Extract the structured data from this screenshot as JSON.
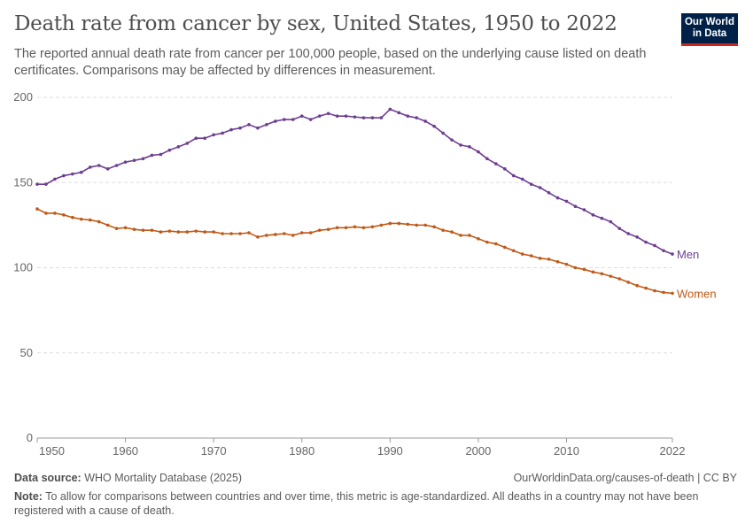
{
  "header": {
    "title": "Death rate from cancer by sex, United States, 1950 to 2022",
    "subtitle": "The reported annual death rate from cancer per 100,000 people, based on the underlying cause listed on death certificates. Comparisons may be affected by differences in measurement.",
    "logo_text": "Our World in Data"
  },
  "footer": {
    "source_label": "Data source:",
    "source": "WHO Mortality Database (2025)",
    "url": "OurWorldinData.org/causes-of-death | CC BY",
    "note_label": "Note:",
    "note": "To allow for comparisons between countries and over time, this metric is age-standardized. All deaths in a country may not have been registered with a cause of death."
  },
  "chart_data": {
    "type": "line",
    "title": "Death rate from cancer by sex, United States, 1950 to 2022",
    "xlim": [
      1950,
      2022
    ],
    "ylim": [
      0,
      200
    ],
    "x_ticks": [
      "1950",
      "1960",
      "1970",
      "1980",
      "1990",
      "2000",
      "2010",
      "2022"
    ],
    "y_ticks": [
      "0",
      "50",
      "100",
      "150",
      "200"
    ],
    "grid": "horizontal dashed",
    "legend": "end-of-line labels",
    "x": [
      1950,
      1951,
      1952,
      1953,
      1954,
      1955,
      1956,
      1957,
      1958,
      1959,
      1960,
      1961,
      1962,
      1963,
      1964,
      1965,
      1966,
      1967,
      1968,
      1969,
      1970,
      1971,
      1972,
      1973,
      1974,
      1975,
      1976,
      1977,
      1978,
      1979,
      1980,
      1981,
      1982,
      1983,
      1984,
      1985,
      1986,
      1987,
      1988,
      1989,
      1990,
      1991,
      1992,
      1993,
      1994,
      1995,
      1996,
      1997,
      1998,
      1999,
      2000,
      2001,
      2002,
      2003,
      2004,
      2005,
      2006,
      2007,
      2008,
      2009,
      2010,
      2011,
      2012,
      2013,
      2014,
      2015,
      2016,
      2017,
      2018,
      2019,
      2020,
      2021,
      2022
    ],
    "series": [
      {
        "name": "Men",
        "color": "#6d3e91",
        "values": [
          149,
          149,
          152,
          154,
          155,
          156,
          159,
          160,
          158,
          160,
          162,
          163,
          164,
          166,
          166.5,
          169,
          171,
          173,
          176,
          176,
          178,
          179,
          181,
          182,
          184,
          182,
          184,
          186,
          187,
          187,
          189,
          187,
          189,
          190.5,
          189,
          189,
          188.5,
          188,
          188,
          188,
          193,
          191,
          189,
          188,
          186,
          183,
          179,
          175,
          172,
          171,
          168,
          164,
          161,
          158,
          154,
          152,
          149,
          147,
          144,
          141,
          139,
          136,
          134,
          131,
          129,
          127,
          123,
          120,
          118,
          115,
          113,
          110,
          108
        ]
      },
      {
        "name": "Women",
        "color": "#c05917",
        "values": [
          134.5,
          132,
          132,
          131,
          129.5,
          128.5,
          128,
          127,
          125,
          123,
          123.5,
          122.5,
          122,
          122,
          121,
          121.5,
          121,
          121,
          121.5,
          121,
          121,
          120,
          120,
          120,
          120.5,
          118,
          119,
          119.5,
          120,
          119,
          120.5,
          120.5,
          122,
          122.5,
          123.5,
          123.5,
          124,
          123.5,
          124,
          125,
          126,
          126,
          125.5,
          125,
          125,
          124,
          122,
          121,
          119,
          119,
          117,
          115,
          114,
          112,
          110,
          108,
          107,
          105.5,
          105,
          103.5,
          102,
          100,
          99,
          97.5,
          96.5,
          95,
          93.5,
          91.5,
          89.5,
          88,
          86.5,
          85.5,
          85
        ]
      }
    ]
  }
}
